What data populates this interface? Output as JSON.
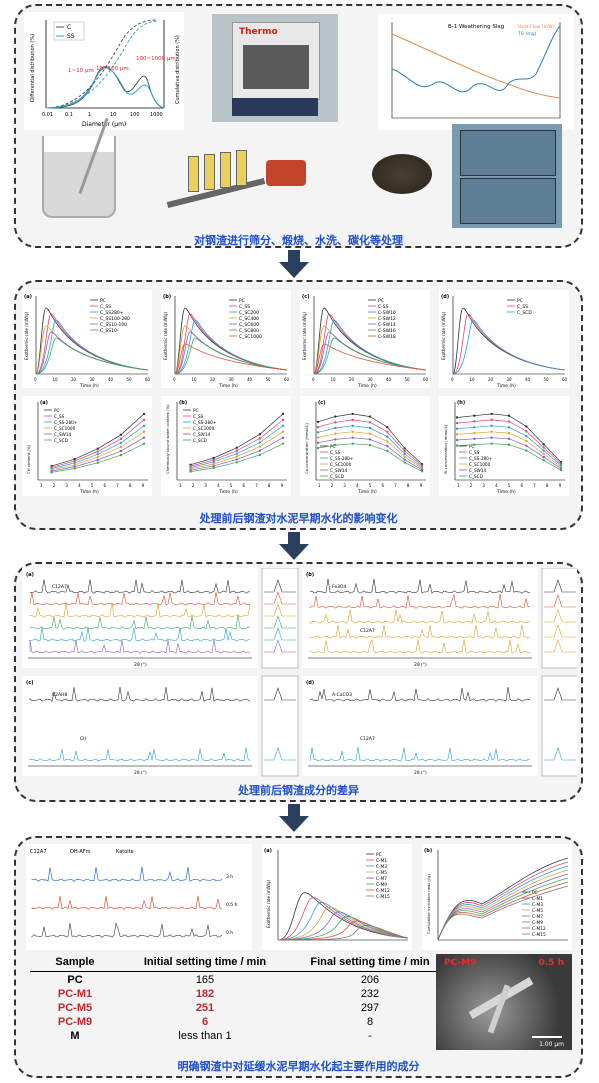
{
  "panel1": {
    "caption": "对钢渣进行筛分、煅烧、水洗、碳化等处理",
    "psd_legend": [
      "C",
      "SS"
    ],
    "psd_annotations": [
      "1~10 μm",
      "10~100 μm",
      "100~1000 μm"
    ],
    "psd_xlabel": "Diameter (μm)",
    "psd_ylabel_left": "Differential distribution (%)",
    "psd_ylabel_right": "Cumulative distribution (%)",
    "psd_xticks": [
      "0.01",
      "0.1",
      "1",
      "10",
      "100",
      "1000"
    ],
    "psd_yticks": [
      "0",
      "1",
      "2",
      "3",
      "4",
      "5",
      "6",
      "7"
    ],
    "furnace_brand": "Thermo",
    "tga_title": "B-1 Weathering Slag",
    "tga_legend": [
      "Heat Flow (mW)",
      "TG (mg)"
    ]
  },
  "panel2": {
    "caption": "处理前后钢渣对水泥早期水化的影响变化",
    "heat_charts": [
      {
        "label": "(a)",
        "legend": [
          "PC",
          "C_SS",
          "C_SS280+",
          "C_SS100-280",
          "C_SS10-100",
          "C_SS10-"
        ]
      },
      {
        "label": "(b)",
        "legend": [
          "PC",
          "C_SS",
          "C_SC200",
          "C_SC400",
          "C_SC600",
          "C_SC800",
          "C_SC1000"
        ]
      },
      {
        "label": "(c)",
        "legend": [
          "PC",
          "C-SS",
          "C-SW10",
          "C-SW12",
          "C-SW14",
          "C-SW16",
          "C-SW18"
        ]
      },
      {
        "label": "(d)",
        "legend": [
          "PC",
          "C_SS",
          "C_SCD"
        ]
      }
    ],
    "heat_ylabel": "Exothermic rate (mW/g)",
    "heat_xlabel": "Time (h)",
    "heat_xticks": [
      "0",
      "10",
      "20",
      "30",
      "40",
      "50",
      "60"
    ],
    "bottom_charts": [
      {
        "label": "(a)",
        "ylabel": "CH content (%)",
        "xlabel": "Time (h)",
        "legend": [
          "PC",
          "C_SS",
          "C_SS-280+",
          "C_SC1000",
          "C_SW14",
          "C_SCD"
        ]
      },
      {
        "label": "(b)",
        "ylabel": "Chemically bound water content (%)",
        "xlabel": "Time (h)",
        "legend": [
          "PC",
          "C_SS",
          "C_SS-280+",
          "C_SC1000",
          "C_SW14",
          "C_SCD"
        ]
      },
      {
        "label": "(c)",
        "ylabel": "Ca concentration (mmol/L)",
        "xlabel": "Time (h)",
        "legend": [
          "PC",
          "C_SS",
          "C_SS-280+",
          "C_SC1000",
          "C_SW14",
          "C_SCD"
        ]
      },
      {
        "label": "(h)",
        "ylabel": "Si concentration (mmol/L)",
        "xlabel": "Time (h)",
        "legend": [
          "PC",
          "C_SS",
          "C_SS-280+",
          "C_SC1000",
          "C_SW14",
          "C_SCD"
        ]
      }
    ],
    "bottom_xticks": [
      "1",
      "2",
      "3",
      "4",
      "5",
      "6",
      "7",
      "8",
      "9"
    ]
  },
  "panel3": {
    "caption": "处理前后钢渣成分的差异",
    "xrd_xlabel": "2θ (°)",
    "xrd_charts": [
      {
        "label": "(a)",
        "annotations": [
          "C12A7"
        ]
      },
      {
        "label": "(b)",
        "annotations": [
          "Fe3O4",
          "C12A7"
        ]
      },
      {
        "label": "(c)",
        "annotations": [
          "C2AH8",
          "CH",
          "C12A7"
        ]
      },
      {
        "label": "(d)",
        "annotations": [
          "A-CaCO3",
          "C12A7"
        ]
      }
    ]
  },
  "panel4": {
    "caption": "明确钢渣中对延缓水泥早期水化起主要作用的成分",
    "xrd_legend": [
      "C12A7",
      "OH-AFm",
      "Katoite"
    ],
    "xrd_series": [
      "3 h",
      "0.5 h",
      "0 h"
    ],
    "heat_label": "(a)",
    "heat_ylabel": "Exothermic rate (mW/g)",
    "heat_legend": [
      "PC",
      "C-M1",
      "C-M3",
      "C-M5",
      "C-M7",
      "C-M9",
      "C-M12",
      "C-M15"
    ],
    "cum_label": "(b)",
    "cum_ylabel": "Cumulative hydration heat (J/g)",
    "cum_legend": [
      "PC",
      "C-M1",
      "C-M3",
      "C-M5",
      "C-M7",
      "C-M9",
      "C-M12",
      "C-M15"
    ],
    "sem_labels": [
      "PC-M9",
      "0.5 h"
    ],
    "sem_scale": "1.00 μm",
    "table": {
      "headers": [
        "Sample",
        "Initial setting time / min",
        "Final setting time / min"
      ],
      "rows": [
        {
          "sample": "PC",
          "initial": "165",
          "final": "206"
        },
        {
          "sample": "PC-M1",
          "initial": "182",
          "final": "232"
        },
        {
          "sample": "PC-M5",
          "initial": "251",
          "final": "297"
        },
        {
          "sample": "PC-M9",
          "initial": "6",
          "final": "8"
        },
        {
          "sample": "M",
          "initial": "less than 1",
          "final": "-"
        }
      ]
    }
  }
}
